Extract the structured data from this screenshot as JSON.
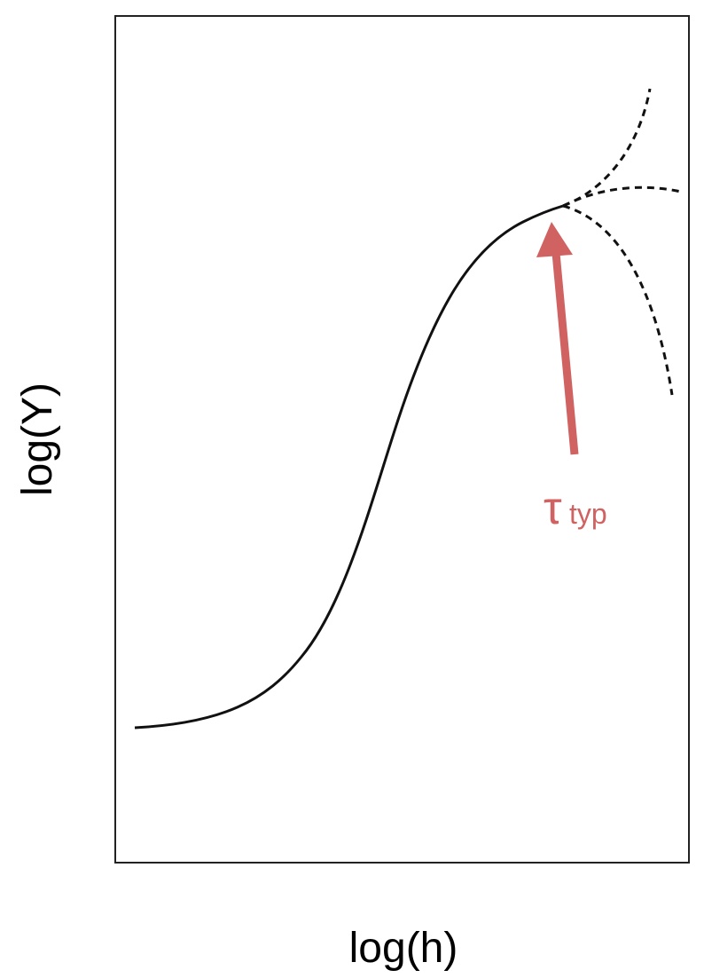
{
  "y_axis": {
    "label": "log(Y)"
  },
  "x_axis": {
    "label": "log(h)"
  },
  "annotation": {
    "symbol": "τ",
    "subscript": "typ"
  }
}
